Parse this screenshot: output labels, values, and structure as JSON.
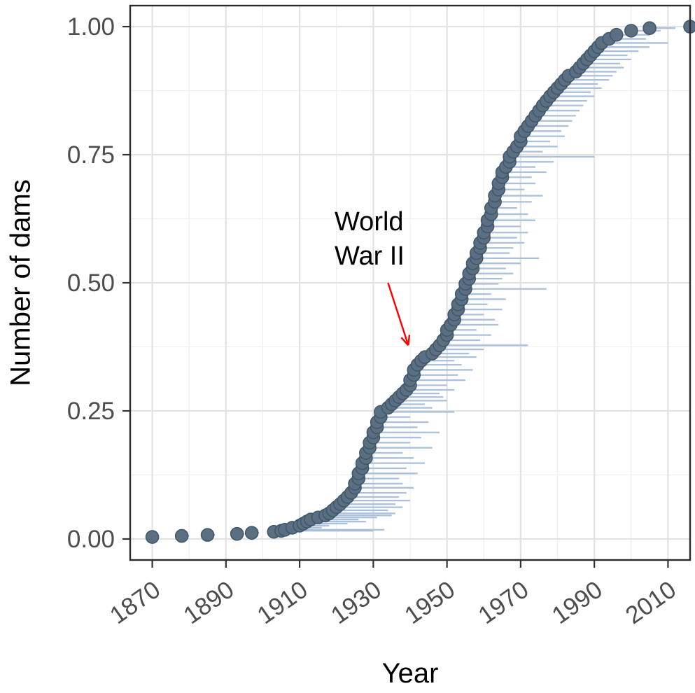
{
  "chart_data": {
    "type": "scatter",
    "title": "",
    "xlabel": "Year",
    "ylabel": "Number of dams",
    "x_ticks": [
      1870,
      1890,
      1910,
      1930,
      1950,
      1970,
      1990,
      2010
    ],
    "x_minor_ticks": [
      1880,
      1900,
      1920,
      1940,
      1960,
      1980,
      2000
    ],
    "y_ticks": [
      0.0,
      0.25,
      0.5,
      0.75,
      1.0
    ],
    "y_minor_ticks": [
      0.125,
      0.375,
      0.625,
      0.875
    ],
    "y_tick_labels": [
      "0.00",
      "0.25",
      "0.50",
      "0.75",
      "1.00"
    ],
    "xlim": [
      1864,
      2016
    ],
    "ylim": [
      -0.041,
      1.041
    ],
    "grid": true,
    "legend": "none",
    "colors": {
      "point_fill": "#5a7082",
      "point_stroke": "#41586b",
      "segment": "#a7bdd9",
      "grid_major": "#e2e2e2",
      "grid_minor": "#efefef",
      "border": "#2b2b2b",
      "tick_mark": "#333333",
      "tick_text": "#4d4d4d",
      "axis_title": "#000000",
      "background": "#ffffff",
      "annotation_arrow": "#ff0000"
    },
    "annotation": {
      "lines": [
        "World",
        "War II"
      ],
      "arrow": {
        "x1": 1934,
        "y1": 0.5,
        "x2": 1939.5,
        "y2": 0.378
      }
    },
    "series": [
      {
        "name": "dams",
        "point_meaning": "cumulative proportion of dams vs year, with horizontal lifespan segment [year_start, year_end, fraction]",
        "points": [
          [
            1870,
            1871,
            0.004
          ],
          [
            1878,
            1880,
            0.006
          ],
          [
            1885,
            1887,
            0.008
          ],
          [
            1893,
            1895,
            0.01
          ],
          [
            1897,
            1899,
            0.012
          ],
          [
            1903,
            1906,
            0.014
          ],
          [
            1905,
            1930,
            0.016
          ],
          [
            1906,
            1933,
            0.018
          ],
          [
            1908,
            1916,
            0.022
          ],
          [
            1910,
            1918,
            0.026
          ],
          [
            1911,
            1923,
            0.03
          ],
          [
            1912,
            1928,
            0.034
          ],
          [
            1913,
            1926,
            0.038
          ],
          [
            1915,
            1931,
            0.042
          ],
          [
            1917,
            1935,
            0.046
          ],
          [
            1918,
            1936,
            0.05
          ],
          [
            1919,
            1934,
            0.056
          ],
          [
            1920,
            1938,
            0.062
          ],
          [
            1921,
            1936,
            0.068
          ],
          [
            1922,
            1940,
            0.075
          ],
          [
            1923,
            1937,
            0.082
          ],
          [
            1924,
            1939,
            0.09
          ],
          [
            1925,
            1941,
            0.1
          ],
          [
            1925,
            1938,
            0.108
          ],
          [
            1926,
            1937,
            0.118
          ],
          [
            1926,
            1942,
            0.128
          ],
          [
            1927,
            1939,
            0.138
          ],
          [
            1927,
            1944,
            0.148
          ],
          [
            1928,
            1941,
            0.158
          ],
          [
            1928,
            1938,
            0.168
          ],
          [
            1929,
            1946,
            0.178
          ],
          [
            1929,
            1940,
            0.188
          ],
          [
            1930,
            1943,
            0.198
          ],
          [
            1930,
            1948,
            0.208
          ],
          [
            1931,
            1942,
            0.218
          ],
          [
            1931,
            1945,
            0.228
          ],
          [
            1932,
            1940,
            0.238
          ],
          [
            1932,
            1952,
            0.248
          ],
          [
            1934,
            1946,
            0.256
          ],
          [
            1935,
            1944,
            0.263
          ],
          [
            1936,
            1950,
            0.27
          ],
          [
            1937,
            1949,
            0.277
          ],
          [
            1938,
            1948,
            0.284
          ],
          [
            1939,
            1952,
            0.291
          ],
          [
            1940,
            1950,
            0.3
          ],
          [
            1940,
            1955,
            0.31
          ],
          [
            1941,
            1953,
            0.32
          ],
          [
            1941,
            1957,
            0.33
          ],
          [
            1942,
            1954,
            0.34
          ],
          [
            1943,
            1952,
            0.348
          ],
          [
            1944,
            1958,
            0.355
          ],
          [
            1946,
            1956,
            0.362
          ],
          [
            1947,
            1960,
            0.37
          ],
          [
            1948,
            1972,
            0.378
          ],
          [
            1949,
            1959,
            0.388
          ],
          [
            1950,
            1962,
            0.398
          ],
          [
            1950,
            1958,
            0.408
          ],
          [
            1951,
            1964,
            0.418
          ],
          [
            1952,
            1963,
            0.428
          ],
          [
            1952,
            1960,
            0.438
          ],
          [
            1953,
            1965,
            0.448
          ],
          [
            1953,
            1961,
            0.458
          ],
          [
            1954,
            1966,
            0.468
          ],
          [
            1954,
            1962,
            0.478
          ],
          [
            1955,
            1977,
            0.488
          ],
          [
            1955,
            1964,
            0.498
          ],
          [
            1956,
            1965,
            0.508
          ],
          [
            1956,
            1968,
            0.518
          ],
          [
            1957,
            1966,
            0.528
          ],
          [
            1957,
            1970,
            0.538
          ],
          [
            1958,
            1975,
            0.548
          ],
          [
            1958,
            1967,
            0.558
          ],
          [
            1959,
            1968,
            0.568
          ],
          [
            1959,
            1971,
            0.578
          ],
          [
            1960,
            1969,
            0.588
          ],
          [
            1960,
            1972,
            0.598
          ],
          [
            1961,
            1970,
            0.61
          ],
          [
            1961,
            1974,
            0.622
          ],
          [
            1962,
            1972,
            0.634
          ],
          [
            1962,
            1969,
            0.646
          ],
          [
            1963,
            1973,
            0.658
          ],
          [
            1963,
            1976,
            0.67
          ],
          [
            1964,
            1971,
            0.682
          ],
          [
            1964,
            1974,
            0.694
          ],
          [
            1965,
            1973,
            0.706
          ],
          [
            1965,
            1977,
            0.716
          ],
          [
            1966,
            1974,
            0.726
          ],
          [
            1967,
            1979,
            0.736
          ],
          [
            1967,
            1990,
            0.746
          ],
          [
            1968,
            1976,
            0.756
          ],
          [
            1969,
            1980,
            0.766
          ],
          [
            1970,
            1978,
            0.776
          ],
          [
            1970,
            1982,
            0.786
          ],
          [
            1971,
            1981,
            0.796
          ],
          [
            1972,
            1983,
            0.806
          ],
          [
            1973,
            1984,
            0.816
          ],
          [
            1974,
            1985,
            0.826
          ],
          [
            1975,
            1986,
            0.836
          ],
          [
            1976,
            1987,
            0.846
          ],
          [
            1977,
            1988,
            0.855
          ],
          [
            1978,
            1990,
            0.864
          ],
          [
            1979,
            1989,
            0.872
          ],
          [
            1980,
            1992,
            0.88
          ],
          [
            1981,
            1991,
            0.888
          ],
          [
            1982,
            1994,
            0.896
          ],
          [
            1983,
            1995,
            0.904
          ],
          [
            1985,
            1996,
            0.912
          ],
          [
            1986,
            1998,
            0.92
          ],
          [
            1987,
            1997,
            0.928
          ],
          [
            1988,
            2000,
            0.936
          ],
          [
            1989,
            1999,
            0.944
          ],
          [
            1990,
            2002,
            0.952
          ],
          [
            1991,
            2005,
            0.96
          ],
          [
            1992,
            2010,
            0.968
          ],
          [
            1994,
            2004,
            0.976
          ],
          [
            1996,
            2005,
            0.984
          ],
          [
            2000,
            2008,
            0.992
          ],
          [
            2005,
            2012,
            0.997
          ],
          [
            2016,
            2017,
            1.0
          ]
        ]
      }
    ]
  }
}
